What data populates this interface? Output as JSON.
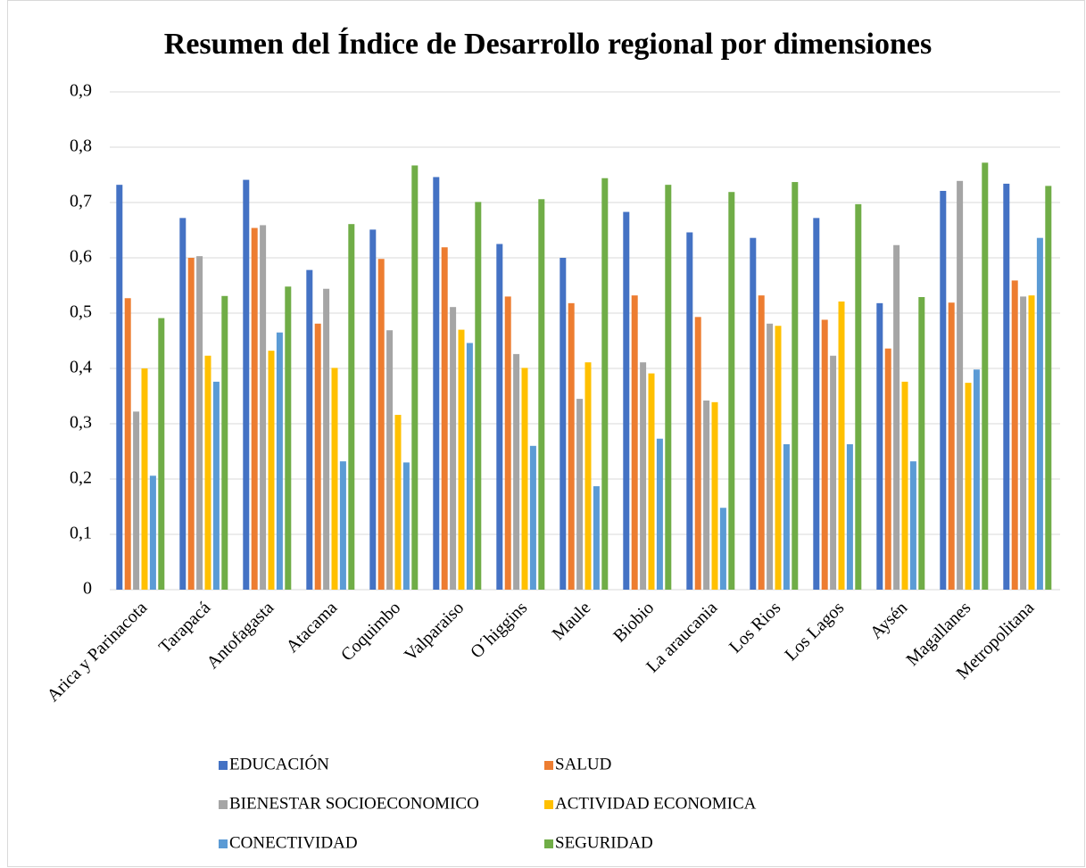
{
  "chart_data": {
    "type": "bar",
    "title": "Resumen del Índice de Desarrollo regional por dimensiones",
    "categories": [
      "Arica y Parinacota",
      "Tarapacá",
      "Antofagasta",
      "Atacama",
      "Coquimbo",
      "Valparaiso",
      "O´higgins",
      "Maule",
      "Biobio",
      "La araucania",
      "Los Rios",
      "Los Lagos",
      "Aysén",
      "Magallanes",
      "Metropolitana"
    ],
    "series": [
      {
        "name": "EDUCACIÓN",
        "color": "#4472c4",
        "values": [
          0.732,
          0.672,
          0.741,
          0.578,
          0.651,
          0.746,
          0.625,
          0.6,
          0.683,
          0.646,
          0.636,
          0.672,
          0.518,
          0.721,
          0.734
        ]
      },
      {
        "name": "SALUD",
        "color": "#ed7d31",
        "values": [
          0.527,
          0.6,
          0.654,
          0.481,
          0.598,
          0.619,
          0.53,
          0.518,
          0.532,
          0.493,
          0.532,
          0.488,
          0.436,
          0.519,
          0.559
        ]
      },
      {
        "name": "BIENESTAR SOCIOECONOMICO",
        "color": "#a5a5a5",
        "values": [
          0.322,
          0.603,
          0.659,
          0.544,
          0.469,
          0.511,
          0.426,
          0.345,
          0.411,
          0.342,
          0.481,
          0.423,
          0.623,
          0.739,
          0.53
        ]
      },
      {
        "name": "ACTIVIDAD ECONOMICA",
        "color": "#ffc000",
        "values": [
          0.4,
          0.423,
          0.432,
          0.401,
          0.316,
          0.47,
          0.401,
          0.411,
          0.391,
          0.339,
          0.477,
          0.521,
          0.376,
          0.374,
          0.532
        ]
      },
      {
        "name": "CONECTIVIDAD",
        "color": "#5b9bd5",
        "values": [
          0.206,
          0.376,
          0.465,
          0.232,
          0.23,
          0.446,
          0.26,
          0.187,
          0.273,
          0.148,
          0.263,
          0.263,
          0.232,
          0.398,
          0.636
        ]
      },
      {
        "name": "SEGURIDAD",
        "color": "#70ad47",
        "values": [
          0.491,
          0.531,
          0.548,
          0.661,
          0.767,
          0.701,
          0.706,
          0.744,
          0.732,
          0.719,
          0.737,
          0.697,
          0.529,
          0.772,
          0.73
        ]
      }
    ],
    "ylim": [
      0,
      0.9
    ],
    "yticks": [
      0,
      {
        "value": 0.1,
        "label": "0,1"
      },
      {
        "value": 0.2,
        "label": "0,2"
      },
      {
        "value": 0.3,
        "label": "0,3"
      },
      {
        "value": 0.4,
        "label": "0,4"
      },
      {
        "value": 0.5,
        "label": "0,5"
      },
      {
        "value": 0.6,
        "label": "0,6"
      },
      {
        "value": 0.7,
        "label": "0,7"
      },
      {
        "value": 0.8,
        "label": "0,8"
      },
      {
        "value": 0.9,
        "label": "0,9"
      }
    ],
    "grid": true
  }
}
